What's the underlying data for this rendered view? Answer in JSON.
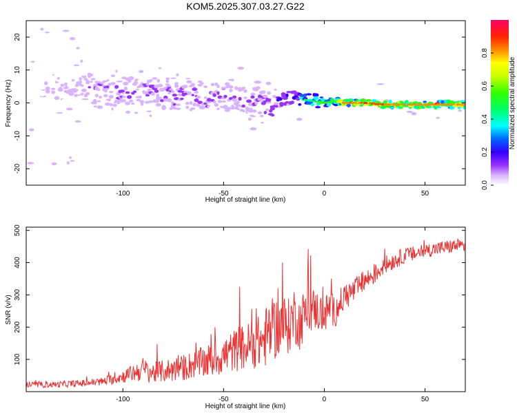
{
  "title": "KOM5.2025.307.03.27.G22",
  "chart_data": [
    {
      "type": "heatmap",
      "title": "KOM5.2025.307.03.27.G22",
      "xlabel": "Height of straight line (km)",
      "ylabel": "Frequency (Hz)",
      "xlim": [
        -148,
        70
      ],
      "ylim": [
        -25,
        25
      ],
      "xticks": [
        -100,
        -50,
        0,
        50
      ],
      "yticks": [
        -20,
        -10,
        0,
        10,
        20
      ],
      "colorbar": {
        "label": "Normalized spectral amplitude",
        "range": [
          0,
          1
        ],
        "ticks": [
          0.0,
          0.2,
          0.4,
          0.6,
          0.8
        ],
        "tick_labels": [
          "0.0",
          "0.2",
          "0.4",
          "0.6",
          "0.8"
        ]
      },
      "ridge": {
        "x": [
          -145,
          -130,
          -115,
          -100,
          -85,
          -70,
          -55,
          -45,
          -35,
          -28,
          -20,
          -15,
          -10,
          -5,
          0,
          5,
          10,
          20,
          30,
          40,
          50,
          60,
          70
        ],
        "freq": [
          4,
          4,
          4.5,
          3.5,
          3,
          2,
          2,
          2,
          1,
          -1,
          1.5,
          1.5,
          1,
          0.5,
          0,
          0.5,
          0,
          0,
          -0.5,
          -0.5,
          -0.5,
          -0.5,
          -0.5
        ],
        "amplitude": [
          0.05,
          0.1,
          0.12,
          0.15,
          0.15,
          0.16,
          0.15,
          0.15,
          0.14,
          0.2,
          0.25,
          0.3,
          0.45,
          0.55,
          0.6,
          0.6,
          0.85,
          0.9,
          0.9,
          0.88,
          0.9,
          0.88,
          0.85
        ]
      }
    },
    {
      "type": "line",
      "xlabel": "Height of straight line (km)",
      "ylabel": "SNR (v/v)",
      "xlim": [
        -148,
        70
      ],
      "ylim": [
        0,
        510
      ],
      "xticks": [
        -100,
        -50,
        0,
        50
      ],
      "yticks": [
        100,
        200,
        300,
        400,
        500
      ],
      "color": "#ee3030",
      "series": [
        {
          "name": "SNR",
          "x": [
            -148,
            -140,
            -130,
            -120,
            -110,
            -100,
            -95,
            -90,
            -85,
            -80,
            -75,
            -70,
            -65,
            -60,
            -55,
            -50,
            -45,
            -40,
            -35,
            -30,
            -28,
            -25,
            -20,
            -18,
            -15,
            -12,
            -10,
            -5,
            0,
            3,
            5,
            10,
            15,
            20,
            25,
            30,
            35,
            40,
            45,
            50,
            55,
            60,
            65,
            70
          ],
          "values": [
            20,
            20,
            22,
            25,
            30,
            45,
            55,
            65,
            55,
            60,
            65,
            70,
            80,
            85,
            95,
            105,
            120,
            130,
            140,
            150,
            170,
            185,
            200,
            190,
            230,
            200,
            235,
            250,
            230,
            260,
            240,
            290,
            310,
            340,
            360,
            390,
            405,
            420,
            425,
            435,
            440,
            445,
            450,
            450
          ],
          "noise": [
            8,
            8,
            9,
            10,
            12,
            18,
            25,
            35,
            30,
            32,
            35,
            38,
            40,
            45,
            50,
            55,
            60,
            65,
            70,
            80,
            90,
            90,
            85,
            80,
            80,
            75,
            70,
            60,
            55,
            50,
            45,
            40,
            35,
            30,
            28,
            25,
            25,
            22,
            22,
            20,
            20,
            20,
            20,
            20
          ]
        }
      ]
    }
  ]
}
